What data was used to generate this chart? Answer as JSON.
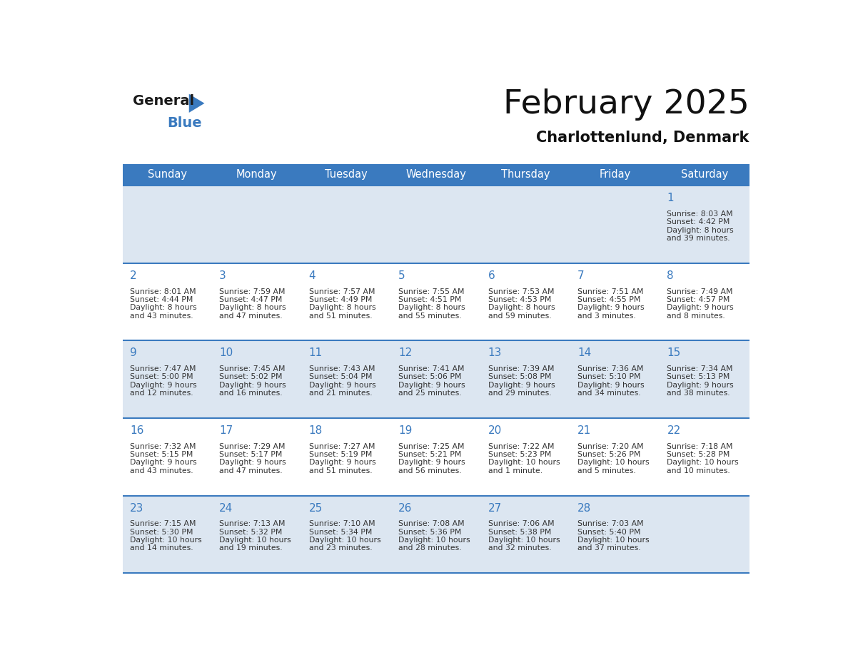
{
  "title": "February 2025",
  "subtitle": "Charlottenlund, Denmark",
  "days_of_week": [
    "Sunday",
    "Monday",
    "Tuesday",
    "Wednesday",
    "Thursday",
    "Friday",
    "Saturday"
  ],
  "header_bg": "#3a7abf",
  "header_text": "#ffffff",
  "row_bg_odd": "#dce6f1",
  "row_bg_even": "#ffffff",
  "cell_border": "#3a7abf",
  "day_number_color": "#3a7abf",
  "info_text_color": "#333333",
  "logo_general_color": "#1a1a1a",
  "logo_blue_color": "#3a7abf",
  "calendar_data": [
    [
      null,
      null,
      null,
      null,
      null,
      null,
      {
        "day": "1",
        "sunrise": "8:03 AM",
        "sunset": "4:42 PM",
        "daylight_line1": "Daylight: 8 hours",
        "daylight_line2": "and 39 minutes."
      }
    ],
    [
      {
        "day": "2",
        "sunrise": "8:01 AM",
        "sunset": "4:44 PM",
        "daylight_line1": "Daylight: 8 hours",
        "daylight_line2": "and 43 minutes."
      },
      {
        "day": "3",
        "sunrise": "7:59 AM",
        "sunset": "4:47 PM",
        "daylight_line1": "Daylight: 8 hours",
        "daylight_line2": "and 47 minutes."
      },
      {
        "day": "4",
        "sunrise": "7:57 AM",
        "sunset": "4:49 PM",
        "daylight_line1": "Daylight: 8 hours",
        "daylight_line2": "and 51 minutes."
      },
      {
        "day": "5",
        "sunrise": "7:55 AM",
        "sunset": "4:51 PM",
        "daylight_line1": "Daylight: 8 hours",
        "daylight_line2": "and 55 minutes."
      },
      {
        "day": "6",
        "sunrise": "7:53 AM",
        "sunset": "4:53 PM",
        "daylight_line1": "Daylight: 8 hours",
        "daylight_line2": "and 59 minutes."
      },
      {
        "day": "7",
        "sunrise": "7:51 AM",
        "sunset": "4:55 PM",
        "daylight_line1": "Daylight: 9 hours",
        "daylight_line2": "and 3 minutes."
      },
      {
        "day": "8",
        "sunrise": "7:49 AM",
        "sunset": "4:57 PM",
        "daylight_line1": "Daylight: 9 hours",
        "daylight_line2": "and 8 minutes."
      }
    ],
    [
      {
        "day": "9",
        "sunrise": "7:47 AM",
        "sunset": "5:00 PM",
        "daylight_line1": "Daylight: 9 hours",
        "daylight_line2": "and 12 minutes."
      },
      {
        "day": "10",
        "sunrise": "7:45 AM",
        "sunset": "5:02 PM",
        "daylight_line1": "Daylight: 9 hours",
        "daylight_line2": "and 16 minutes."
      },
      {
        "day": "11",
        "sunrise": "7:43 AM",
        "sunset": "5:04 PM",
        "daylight_line1": "Daylight: 9 hours",
        "daylight_line2": "and 21 minutes."
      },
      {
        "day": "12",
        "sunrise": "7:41 AM",
        "sunset": "5:06 PM",
        "daylight_line1": "Daylight: 9 hours",
        "daylight_line2": "and 25 minutes."
      },
      {
        "day": "13",
        "sunrise": "7:39 AM",
        "sunset": "5:08 PM",
        "daylight_line1": "Daylight: 9 hours",
        "daylight_line2": "and 29 minutes."
      },
      {
        "day": "14",
        "sunrise": "7:36 AM",
        "sunset": "5:10 PM",
        "daylight_line1": "Daylight: 9 hours",
        "daylight_line2": "and 34 minutes."
      },
      {
        "day": "15",
        "sunrise": "7:34 AM",
        "sunset": "5:13 PM",
        "daylight_line1": "Daylight: 9 hours",
        "daylight_line2": "and 38 minutes."
      }
    ],
    [
      {
        "day": "16",
        "sunrise": "7:32 AM",
        "sunset": "5:15 PM",
        "daylight_line1": "Daylight: 9 hours",
        "daylight_line2": "and 43 minutes."
      },
      {
        "day": "17",
        "sunrise": "7:29 AM",
        "sunset": "5:17 PM",
        "daylight_line1": "Daylight: 9 hours",
        "daylight_line2": "and 47 minutes."
      },
      {
        "day": "18",
        "sunrise": "7:27 AM",
        "sunset": "5:19 PM",
        "daylight_line1": "Daylight: 9 hours",
        "daylight_line2": "and 51 minutes."
      },
      {
        "day": "19",
        "sunrise": "7:25 AM",
        "sunset": "5:21 PM",
        "daylight_line1": "Daylight: 9 hours",
        "daylight_line2": "and 56 minutes."
      },
      {
        "day": "20",
        "sunrise": "7:22 AM",
        "sunset": "5:23 PM",
        "daylight_line1": "Daylight: 10 hours",
        "daylight_line2": "and 1 minute."
      },
      {
        "day": "21",
        "sunrise": "7:20 AM",
        "sunset": "5:26 PM",
        "daylight_line1": "Daylight: 10 hours",
        "daylight_line2": "and 5 minutes."
      },
      {
        "day": "22",
        "sunrise": "7:18 AM",
        "sunset": "5:28 PM",
        "daylight_line1": "Daylight: 10 hours",
        "daylight_line2": "and 10 minutes."
      }
    ],
    [
      {
        "day": "23",
        "sunrise": "7:15 AM",
        "sunset": "5:30 PM",
        "daylight_line1": "Daylight: 10 hours",
        "daylight_line2": "and 14 minutes."
      },
      {
        "day": "24",
        "sunrise": "7:13 AM",
        "sunset": "5:32 PM",
        "daylight_line1": "Daylight: 10 hours",
        "daylight_line2": "and 19 minutes."
      },
      {
        "day": "25",
        "sunrise": "7:10 AM",
        "sunset": "5:34 PM",
        "daylight_line1": "Daylight: 10 hours",
        "daylight_line2": "and 23 minutes."
      },
      {
        "day": "26",
        "sunrise": "7:08 AM",
        "sunset": "5:36 PM",
        "daylight_line1": "Daylight: 10 hours",
        "daylight_line2": "and 28 minutes."
      },
      {
        "day": "27",
        "sunrise": "7:06 AM",
        "sunset": "5:38 PM",
        "daylight_line1": "Daylight: 10 hours",
        "daylight_line2": "and 32 minutes."
      },
      {
        "day": "28",
        "sunrise": "7:03 AM",
        "sunset": "5:40 PM",
        "daylight_line1": "Daylight: 10 hours",
        "daylight_line2": "and 37 minutes."
      },
      null
    ]
  ]
}
